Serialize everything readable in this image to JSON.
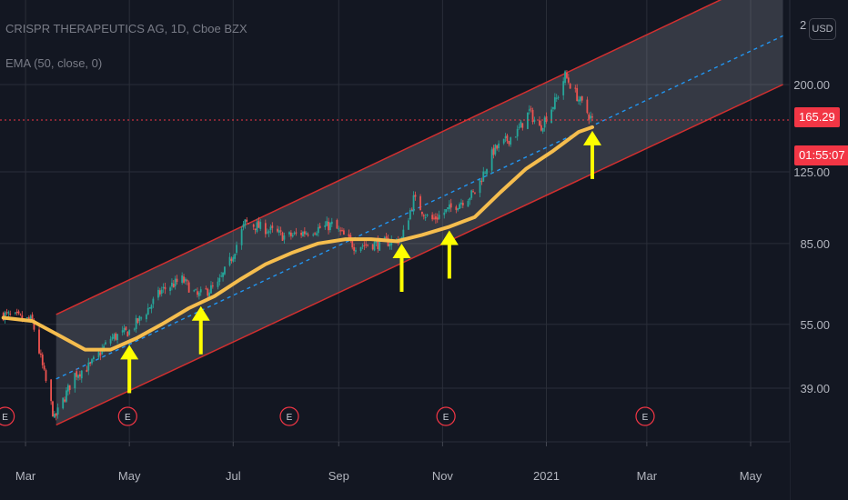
{
  "header": {
    "symbol": "CRISPR THERAPEUTICS AG, 1D, Cboe BZX",
    "indicator": "EMA (50, close, 0)",
    "currency_button": "USD",
    "top_tick_partial": "2"
  },
  "price_tags": {
    "last_price": "165.29",
    "countdown": "01:55:07",
    "color": "#f23645"
  },
  "colors": {
    "background": "#131722",
    "up_candle": "#26a69a",
    "down_candle": "#ef5350",
    "ema": "#f5bd4e",
    "channel": "#d32f2f",
    "midline": "#2196f3",
    "arrows": "#ffff00",
    "earnings_marker": "#f23645"
  },
  "chart_data": {
    "type": "candlestick",
    "title": "CRISPR THERAPEUTICS AG, 1D, Cboe BZX",
    "y_scale": "log",
    "ylim": [
      31,
      270
    ],
    "y_ticks": [
      {
        "v": 39,
        "label": "39.00"
      },
      {
        "v": 55,
        "label": "55.00"
      },
      {
        "v": 85,
        "label": "85.00"
      },
      {
        "v": 125,
        "label": "125.00"
      },
      {
        "v": 200,
        "label": "200.00"
      }
    ],
    "x_ticks": [
      {
        "date": "2020-03-01",
        "label": "Mar"
      },
      {
        "date": "2020-05-01",
        "label": "May"
      },
      {
        "date": "2020-07-01",
        "label": "Jul"
      },
      {
        "date": "2020-09-01",
        "label": "Sep"
      },
      {
        "date": "2020-11-01",
        "label": "Nov"
      },
      {
        "date": "2021-01-01",
        "label": "2021"
      },
      {
        "date": "2021-03-01",
        "label": "Mar"
      },
      {
        "date": "2021-05-01",
        "label": "May"
      }
    ],
    "xlim": [
      "2020-02-15",
      "2021-05-24"
    ],
    "price_path": [
      {
        "date": "2020-02-17",
        "close": 58
      },
      {
        "date": "2020-03-05",
        "close": 56
      },
      {
        "date": "2020-03-12",
        "close": 42
      },
      {
        "date": "2020-03-18",
        "close": 33
      },
      {
        "date": "2020-03-30",
        "close": 42
      },
      {
        "date": "2020-04-08",
        "close": 44
      },
      {
        "date": "2020-04-20",
        "close": 51
      },
      {
        "date": "2020-05-01",
        "close": 53
      },
      {
        "date": "2020-05-08",
        "close": 57
      },
      {
        "date": "2020-05-20",
        "close": 66
      },
      {
        "date": "2020-06-01",
        "close": 70
      },
      {
        "date": "2020-06-10",
        "close": 64
      },
      {
        "date": "2020-06-22",
        "close": 68
      },
      {
        "date": "2020-06-29",
        "close": 77
      },
      {
        "date": "2020-07-08",
        "close": 95
      },
      {
        "date": "2020-07-20",
        "close": 92
      },
      {
        "date": "2020-08-01",
        "close": 88
      },
      {
        "date": "2020-08-15",
        "close": 91
      },
      {
        "date": "2020-08-28",
        "close": 94
      },
      {
        "date": "2020-09-10",
        "close": 84
      },
      {
        "date": "2020-09-25",
        "close": 85
      },
      {
        "date": "2020-10-08",
        "close": 87
      },
      {
        "date": "2020-10-15",
        "close": 108
      },
      {
        "date": "2020-10-25",
        "close": 96
      },
      {
        "date": "2020-11-08",
        "close": 104
      },
      {
        "date": "2020-11-20",
        "close": 112
      },
      {
        "date": "2020-12-01",
        "close": 140
      },
      {
        "date": "2020-12-15",
        "close": 155
      },
      {
        "date": "2020-12-22",
        "close": 173
      },
      {
        "date": "2020-12-28",
        "close": 158
      },
      {
        "date": "2021-01-07",
        "close": 185
      },
      {
        "date": "2021-01-12",
        "close": 210
      },
      {
        "date": "2021-01-20",
        "close": 185
      },
      {
        "date": "2021-01-28",
        "close": 165
      }
    ],
    "ema50": [
      {
        "date": "2020-02-17",
        "value": 57
      },
      {
        "date": "2020-03-05",
        "value": 56
      },
      {
        "date": "2020-03-20",
        "value": 52
      },
      {
        "date": "2020-04-05",
        "value": 48
      },
      {
        "date": "2020-04-20",
        "value": 48
      },
      {
        "date": "2020-05-05",
        "value": 51
      },
      {
        "date": "2020-05-20",
        "value": 55
      },
      {
        "date": "2020-06-05",
        "value": 60
      },
      {
        "date": "2020-06-20",
        "value": 64
      },
      {
        "date": "2020-07-05",
        "value": 70
      },
      {
        "date": "2020-07-20",
        "value": 76
      },
      {
        "date": "2020-08-05",
        "value": 81
      },
      {
        "date": "2020-08-20",
        "value": 85
      },
      {
        "date": "2020-09-05",
        "value": 87
      },
      {
        "date": "2020-09-20",
        "value": 87
      },
      {
        "date": "2020-10-05",
        "value": 86
      },
      {
        "date": "2020-10-20",
        "value": 89
      },
      {
        "date": "2020-11-05",
        "value": 93
      },
      {
        "date": "2020-11-20",
        "value": 98
      },
      {
        "date": "2020-12-05",
        "value": 112
      },
      {
        "date": "2020-12-20",
        "value": 127
      },
      {
        "date": "2021-01-05",
        "value": 140
      },
      {
        "date": "2021-01-20",
        "value": 155
      },
      {
        "date": "2021-01-28",
        "value": 159
      }
    ],
    "channel": {
      "lower": [
        {
          "date": "2020-03-19",
          "value": 32
        },
        {
          "date": "2021-05-20",
          "value": 200
        }
      ],
      "upper": [
        {
          "date": "2020-03-19",
          "value": 58
        },
        {
          "date": "2021-05-20",
          "value": 370
        }
      ],
      "mid": [
        {
          "date": "2020-03-19",
          "value": 41
        },
        {
          "date": "2021-05-20",
          "value": 260
        }
      ]
    },
    "last_price": 165.29,
    "earnings_markers": [
      "2020-02-18",
      "2020-04-30",
      "2020-08-03",
      "2020-11-03",
      "2021-02-28"
    ],
    "arrows": [
      "2020-05-01",
      "2020-06-12",
      "2020-10-08",
      "2020-11-05",
      "2021-01-28"
    ]
  }
}
